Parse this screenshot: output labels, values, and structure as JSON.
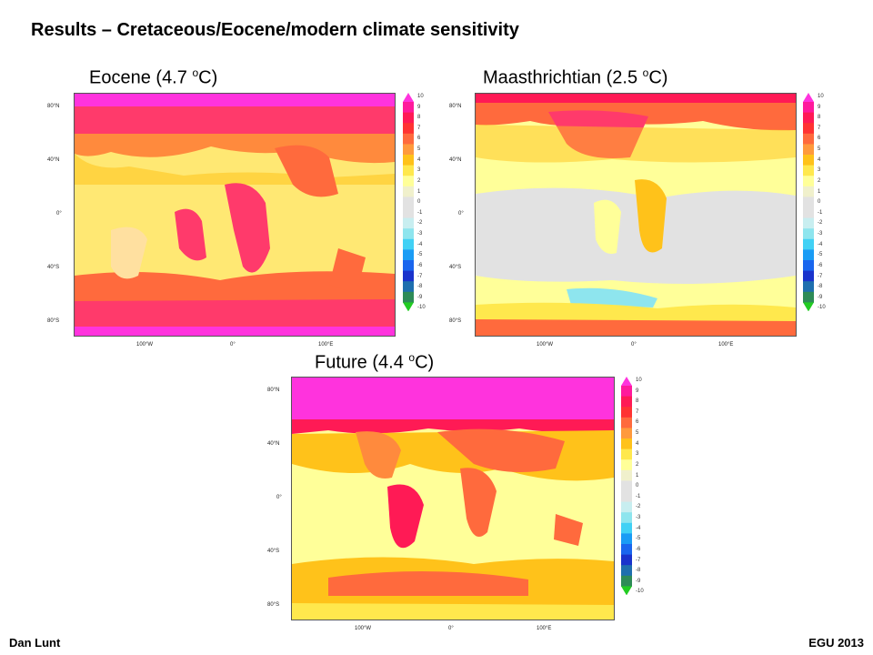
{
  "title": "Results – Cretaceous/Eocene/modern climate sensitivity",
  "panels": [
    {
      "label": "Eocene",
      "sensitivity": "4.7",
      "unit_sup": "o",
      "unit": "C"
    },
    {
      "label": "Maasthrichtian",
      "sensitivity": "2.5",
      "unit_sup": "o",
      "unit": "C"
    },
    {
      "label": "Future",
      "sensitivity": "4.4",
      "unit_sup": "o",
      "unit": "C"
    }
  ],
  "lat_ticks": [
    "80°N",
    "40°N",
    "0°",
    "40°S",
    "80°S"
  ],
  "lon_ticks": [
    "100°W",
    "0°",
    "100°E"
  ],
  "colorbar": {
    "labels": [
      "10",
      "9",
      "8",
      "7",
      "6",
      "5",
      "4",
      "3",
      "2",
      "1",
      "0",
      "-1",
      "-2",
      "-3",
      "-4",
      "-5",
      "-6",
      "-7",
      "-8",
      "-9",
      "-10"
    ],
    "colors": [
      "#ff33dd",
      "#ff1a9c",
      "#ff1a55",
      "#ff3333",
      "#ff6a3d",
      "#ff9a3d",
      "#ffc21a",
      "#ffe84d",
      "#ffff99",
      "#f0f0cc",
      "#e2e2e2",
      "#e2e2e2",
      "#c8eef0",
      "#8ee5ee",
      "#41d1f5",
      "#1a9cf5",
      "#1a66ee",
      "#1a33cc",
      "#1f6fae",
      "#2e8b57",
      "#22cc22"
    ]
  },
  "footer": {
    "author": "Dan Lunt",
    "event": "EGU 2013"
  }
}
